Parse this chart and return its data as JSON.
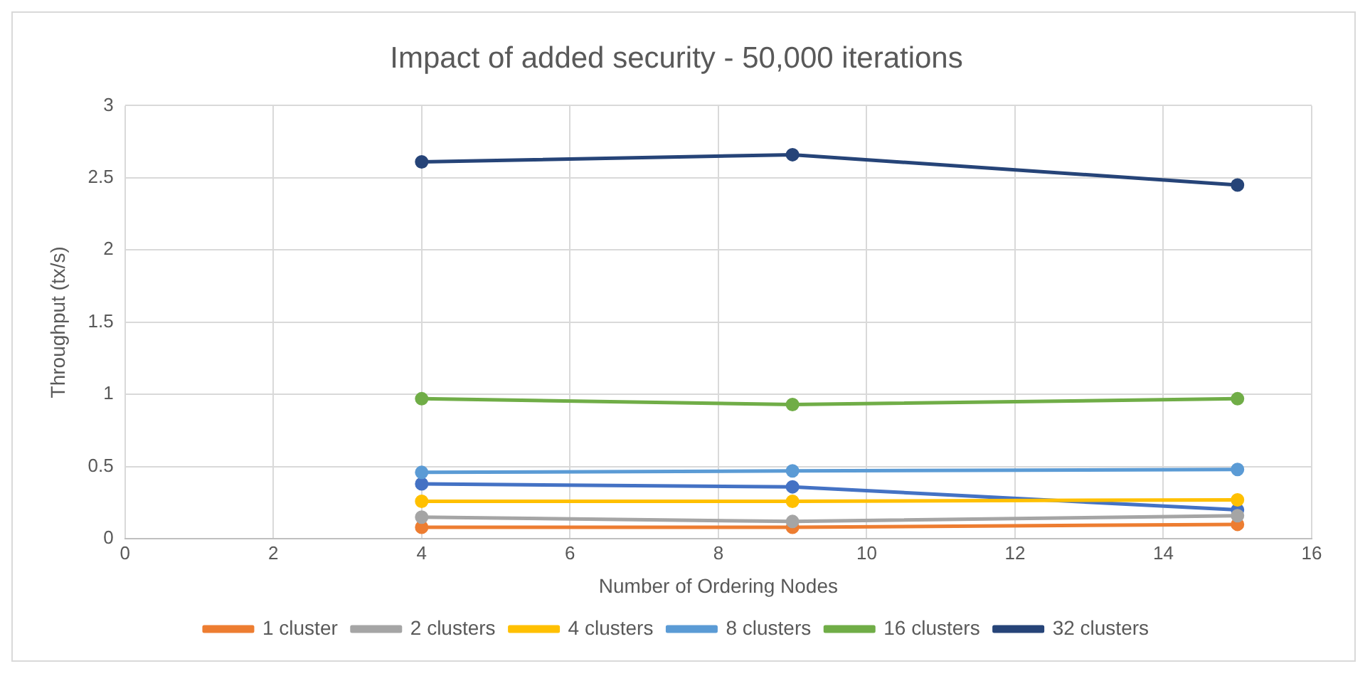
{
  "chart_data": {
    "type": "line",
    "title": "Impact of added security - 50,000 iterations",
    "xlabel": "Number of Ordering Nodes",
    "ylabel": "Throughput (tx/s)",
    "x": [
      4,
      9,
      15
    ],
    "xlim": [
      0,
      16
    ],
    "xticks": [
      0,
      2,
      4,
      6,
      8,
      10,
      12,
      14,
      16
    ],
    "ylim": [
      0,
      3
    ],
    "yticks": [
      0,
      0.5,
      1,
      1.5,
      2,
      2.5,
      3
    ],
    "grid": true,
    "legend": "bottom",
    "marker": "circle",
    "line_style": "solid",
    "series": [
      {
        "color": "#4472c4",
        "values": [
          0.38,
          0.36,
          0.2
        ]
      },
      {
        "name": "1 cluster",
        "color": "#ed7d31",
        "values": [
          0.08,
          0.08,
          0.1
        ]
      },
      {
        "name": "2 clusters",
        "color": "#a5a5a5",
        "values": [
          0.15,
          0.12,
          0.16
        ]
      },
      {
        "name": "4 clusters",
        "color": "#ffc000",
        "values": [
          0.26,
          0.26,
          0.27
        ]
      },
      {
        "name": "8 clusters",
        "color": "#5b9bd5",
        "values": [
          0.46,
          0.47,
          0.48
        ]
      },
      {
        "name": "16 clusters",
        "color": "#70ad47",
        "values": [
          0.97,
          0.93,
          0.97
        ]
      },
      {
        "name": "32 clusters",
        "color": "#264478",
        "values": [
          2.61,
          2.66,
          2.45
        ]
      }
    ]
  }
}
